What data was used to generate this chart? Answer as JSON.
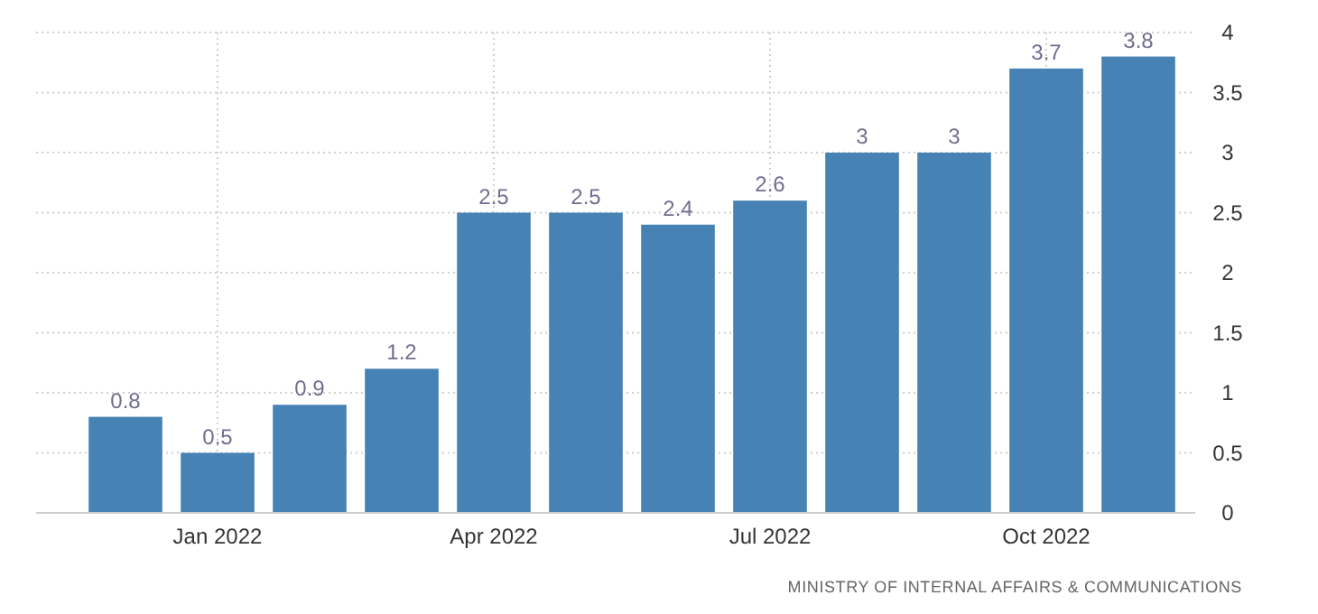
{
  "chart_data": {
    "type": "bar",
    "categories": [
      null,
      "Jan 2022",
      null,
      null,
      "Apr 2022",
      null,
      null,
      "Jul 2022",
      null,
      null,
      "Oct 2022",
      null
    ],
    "values": [
      0.8,
      0.5,
      0.9,
      1.2,
      2.5,
      2.5,
      2.4,
      2.6,
      3,
      3,
      3.7,
      3.8
    ],
    "color": "#4682b4",
    "ylim": [
      0,
      4
    ],
    "yticks": [
      0,
      0.5,
      1,
      1.5,
      2,
      2.5,
      3,
      3.5,
      4
    ],
    "grid": true,
    "data_labels": true,
    "annotations": [
      "MINISTRY OF INTERNAL AFFAIRS & COMMUNICATIONS"
    ]
  }
}
